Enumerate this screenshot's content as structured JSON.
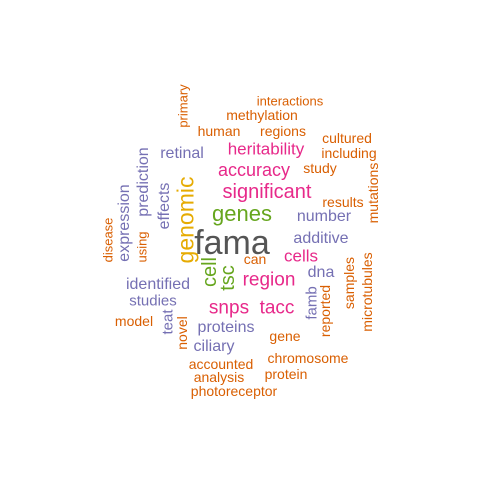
{
  "colors": {
    "orange": "#d95f02",
    "purple": "#7570b3",
    "magenta": "#e7298a",
    "green": "#66a61e",
    "gold": "#e6ab02",
    "gray": "#555555"
  },
  "words": [
    {
      "text": "fama",
      "color": "gray"
    },
    {
      "text": "genomic",
      "color": "gold"
    },
    {
      "text": "genes",
      "color": "green"
    },
    {
      "text": "significant",
      "color": "magenta"
    },
    {
      "text": "accuracy",
      "color": "magenta"
    },
    {
      "text": "heritability",
      "color": "magenta"
    },
    {
      "text": "region",
      "color": "magenta"
    },
    {
      "text": "snps",
      "color": "magenta"
    },
    {
      "text": "tacc",
      "color": "magenta"
    },
    {
      "text": "cells",
      "color": "magenta"
    },
    {
      "text": "cell",
      "color": "green"
    },
    {
      "text": "tsc",
      "color": "green"
    },
    {
      "text": "additive",
      "color": "purple"
    },
    {
      "text": "number",
      "color": "purple"
    },
    {
      "text": "identified",
      "color": "purple"
    },
    {
      "text": "retinal",
      "color": "purple"
    },
    {
      "text": "prediction",
      "color": "purple"
    },
    {
      "text": "expression",
      "color": "purple"
    },
    {
      "text": "effects",
      "color": "purple"
    },
    {
      "text": "proteins",
      "color": "purple"
    },
    {
      "text": "studies",
      "color": "purple"
    },
    {
      "text": "ciliary",
      "color": "purple"
    },
    {
      "text": "dna",
      "color": "purple"
    },
    {
      "text": "famb",
      "color": "purple"
    },
    {
      "text": "teat",
      "color": "purple"
    },
    {
      "text": "interactions",
      "color": "orange"
    },
    {
      "text": "methylation",
      "color": "orange"
    },
    {
      "text": "human",
      "color": "orange"
    },
    {
      "text": "regions",
      "color": "orange"
    },
    {
      "text": "primary",
      "color": "orange"
    },
    {
      "text": "cultured",
      "color": "orange"
    },
    {
      "text": "including",
      "color": "orange"
    },
    {
      "text": "study",
      "color": "orange"
    },
    {
      "text": "results",
      "color": "orange"
    },
    {
      "text": "mutations",
      "color": "orange"
    },
    {
      "text": "disease",
      "color": "orange"
    },
    {
      "text": "using",
      "color": "orange"
    },
    {
      "text": "can",
      "color": "orange"
    },
    {
      "text": "samples",
      "color": "orange"
    },
    {
      "text": "microtubules",
      "color": "orange"
    },
    {
      "text": "reported",
      "color": "orange"
    },
    {
      "text": "model",
      "color": "orange"
    },
    {
      "text": "novel",
      "color": "orange"
    },
    {
      "text": "gene",
      "color": "orange"
    },
    {
      "text": "accounted",
      "color": "orange"
    },
    {
      "text": "chromosome",
      "color": "orange"
    },
    {
      "text": "analysis",
      "color": "orange"
    },
    {
      "text": "protein",
      "color": "orange"
    },
    {
      "text": "photoreceptor",
      "color": "orange"
    }
  ]
}
